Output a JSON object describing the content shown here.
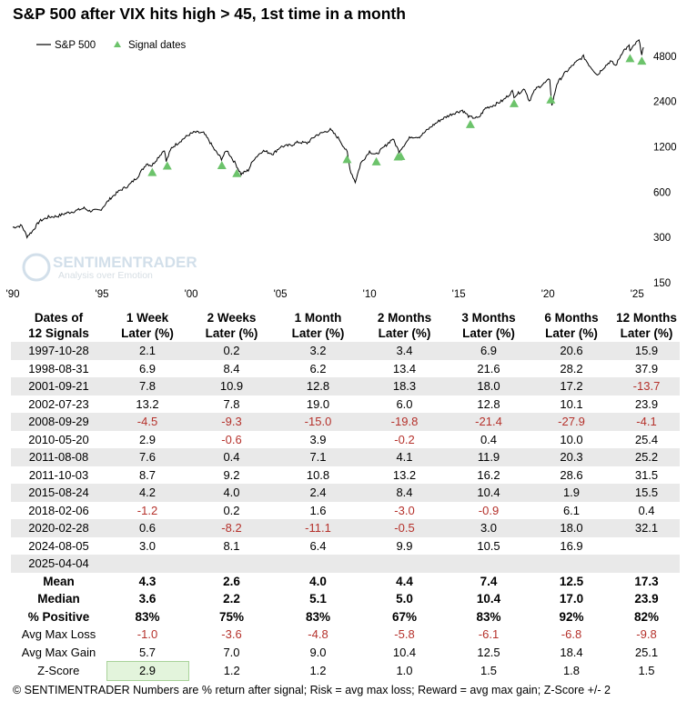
{
  "title": "S&P 500 after VIX hits high > 45, 1st time in a month",
  "chart_data": {
    "type": "line",
    "title": "S&P 500 after VIX hits high > 45, 1st time in a month",
    "series_name": "S&P 500",
    "marker_name": "Signal dates",
    "y_scale": "log",
    "ylim": [
      150,
      6500
    ],
    "y_ticks": [
      150,
      300,
      600,
      1200,
      2400,
      4800
    ],
    "x_range": [
      1990.0,
      2025.6
    ],
    "x_ticks": [
      1990,
      1995,
      2000,
      2005,
      2010,
      2015,
      2020,
      2025
    ],
    "x_tick_labels": [
      "'90",
      "'95",
      "'00",
      "'05",
      "'10",
      "'15",
      "'20",
      "'25"
    ],
    "line_points": [
      [
        1990.0,
        350
      ],
      [
        1990.5,
        360
      ],
      [
        1990.8,
        305
      ],
      [
        1991.1,
        330
      ],
      [
        1991.5,
        385
      ],
      [
        1992.0,
        410
      ],
      [
        1992.5,
        415
      ],
      [
        1993.0,
        435
      ],
      [
        1993.5,
        450
      ],
      [
        1994.0,
        470
      ],
      [
        1994.3,
        450
      ],
      [
        1994.9,
        455
      ],
      [
        1995.5,
        550
      ],
      [
        1996.0,
        615
      ],
      [
        1996.5,
        665
      ],
      [
        1997.0,
        760
      ],
      [
        1997.5,
        930
      ],
      [
        1997.8,
        900
      ],
      [
        1998.0,
        970
      ],
      [
        1998.5,
        1150
      ],
      [
        1998.6,
        960
      ],
      [
        1998.9,
        1180
      ],
      [
        1999.5,
        1340
      ],
      [
        1999.9,
        1450
      ],
      [
        2000.2,
        1500
      ],
      [
        2000.7,
        1480
      ],
      [
        2001.0,
        1320
      ],
      [
        2001.3,
        1150
      ],
      [
        2001.7,
        1000
      ],
      [
        2002.0,
        1140
      ],
      [
        2002.5,
        920
      ],
      [
        2002.8,
        790
      ],
      [
        2003.2,
        840
      ],
      [
        2003.5,
        990
      ],
      [
        2004.0,
        1130
      ],
      [
        2004.6,
        1080
      ],
      [
        2005.0,
        1200
      ],
      [
        2005.6,
        1230
      ],
      [
        2006.0,
        1290
      ],
      [
        2006.5,
        1270
      ],
      [
        2007.0,
        1430
      ],
      [
        2007.8,
        1560
      ],
      [
        2008.3,
        1350
      ],
      [
        2008.75,
        1100
      ],
      [
        2008.9,
        850
      ],
      [
        2009.2,
        700
      ],
      [
        2009.5,
        930
      ],
      [
        2010.0,
        1120
      ],
      [
        2010.35,
        1060
      ],
      [
        2010.7,
        1160
      ],
      [
        2011.3,
        1360
      ],
      [
        2011.65,
        1120
      ],
      [
        2011.8,
        1180
      ],
      [
        2012.3,
        1400
      ],
      [
        2012.8,
        1400
      ],
      [
        2013.5,
        1650
      ],
      [
        2014.0,
        1820
      ],
      [
        2014.6,
        1980
      ],
      [
        2015.2,
        2100
      ],
      [
        2015.6,
        1890
      ],
      [
        2016.1,
        1860
      ],
      [
        2016.5,
        2170
      ],
      [
        2017.0,
        2280
      ],
      [
        2017.5,
        2450
      ],
      [
        2018.0,
        2800
      ],
      [
        2018.1,
        2600
      ],
      [
        2018.7,
        2920
      ],
      [
        2018.95,
        2420
      ],
      [
        2019.3,
        2900
      ],
      [
        2019.9,
        3230
      ],
      [
        2020.1,
        3380
      ],
      [
        2020.22,
        2240
      ],
      [
        2020.5,
        3150
      ],
      [
        2020.9,
        3650
      ],
      [
        2021.5,
        4300
      ],
      [
        2021.99,
        4780
      ],
      [
        2022.3,
        4200
      ],
      [
        2022.78,
        3600
      ],
      [
        2023.0,
        3900
      ],
      [
        2023.5,
        4450
      ],
      [
        2023.8,
        4150
      ],
      [
        2024.2,
        5200
      ],
      [
        2024.55,
        5600
      ],
      [
        2024.6,
        5180
      ],
      [
        2024.95,
        5900
      ],
      [
        2025.1,
        6100
      ],
      [
        2025.26,
        4980
      ],
      [
        2025.35,
        5500
      ]
    ],
    "signals": [
      1997.82,
      1998.66,
      2001.72,
      2002.56,
      2008.74,
      2010.38,
      2011.6,
      2011.75,
      2015.65,
      2018.1,
      2020.16,
      2024.6,
      2025.26
    ],
    "table": {
      "headers": [
        "Dates of\n12 Signals",
        "1 Week\nLater (%)",
        "2 Weeks\nLater (%)",
        "1 Month\nLater (%)",
        "2 Months\nLater (%)",
        "3 Months\nLater (%)",
        "6 Months\nLater (%)",
        "12 Months\nLater (%)"
      ],
      "rows": [
        [
          "1997-10-28",
          "2.1",
          "0.2",
          "3.2",
          "3.4",
          "6.9",
          "20.6",
          "15.9"
        ],
        [
          "1998-08-31",
          "6.9",
          "8.4",
          "6.2",
          "13.4",
          "21.6",
          "28.2",
          "37.9"
        ],
        [
          "2001-09-21",
          "7.8",
          "10.9",
          "12.8",
          "18.3",
          "18.0",
          "17.2",
          "-13.7"
        ],
        [
          "2002-07-23",
          "13.2",
          "7.8",
          "19.0",
          "6.0",
          "12.8",
          "10.1",
          "23.9"
        ],
        [
          "2008-09-29",
          "-4.5",
          "-9.3",
          "-15.0",
          "-19.8",
          "-21.4",
          "-27.9",
          "-4.1"
        ],
        [
          "2010-05-20",
          "2.9",
          "-0.6",
          "3.9",
          "-0.2",
          "0.4",
          "10.0",
          "25.4"
        ],
        [
          "2011-08-08",
          "7.6",
          "0.4",
          "7.1",
          "4.1",
          "11.9",
          "20.3",
          "25.2"
        ],
        [
          "2011-10-03",
          "8.7",
          "9.2",
          "10.8",
          "13.2",
          "16.2",
          "28.6",
          "31.5"
        ],
        [
          "2015-08-24",
          "4.2",
          "4.0",
          "2.4",
          "8.4",
          "10.4",
          "1.9",
          "15.5"
        ],
        [
          "2018-02-06",
          "-1.2",
          "0.2",
          "1.6",
          "-3.0",
          "-0.9",
          "6.1",
          "0.4"
        ],
        [
          "2020-02-28",
          "0.6",
          "-8.2",
          "-11.1",
          "-0.5",
          "3.0",
          "18.0",
          "32.1"
        ],
        [
          "2024-08-05",
          "3.0",
          "8.1",
          "6.4",
          "9.9",
          "10.5",
          "16.9",
          ""
        ],
        [
          "2025-04-04",
          "",
          "",
          "",
          "",
          "",
          "",
          ""
        ]
      ],
      "stats": [
        [
          "Mean",
          "4.3",
          "2.6",
          "4.0",
          "4.4",
          "7.4",
          "12.5",
          "17.3"
        ],
        [
          "Median",
          "3.6",
          "2.2",
          "5.1",
          "5.0",
          "10.4",
          "17.0",
          "23.9"
        ],
        [
          "% Positive",
          "83%",
          "75%",
          "83%",
          "67%",
          "83%",
          "92%",
          "82%"
        ],
        [
          "Avg Max Loss",
          "-1.0",
          "-3.6",
          "-4.8",
          "-5.8",
          "-6.1",
          "-6.8",
          "-9.8"
        ],
        [
          "Avg Max Gain",
          "5.7",
          "7.0",
          "9.0",
          "10.4",
          "12.5",
          "18.4",
          "25.1"
        ],
        [
          "Z-Score",
          "2.9",
          "1.2",
          "1.2",
          "1.0",
          "1.5",
          "1.8",
          "1.5"
        ]
      ]
    }
  },
  "legend": {
    "line_label": "S&P 500",
    "marker_label": "Signal dates"
  },
  "watermark": {
    "name": "SENTIMENTRADER",
    "tagline": "Analysis over Emotion"
  },
  "footer": "© SENTIMENTRADER  Numbers are % return after signal; Risk = avg max loss; Reward = avg max gain; Z-Score +/- 2",
  "colors": {
    "line": "#000000",
    "marker": "#6cc36b",
    "negative": "#b5312b",
    "zscore_highlight": "#e3f4dc"
  }
}
